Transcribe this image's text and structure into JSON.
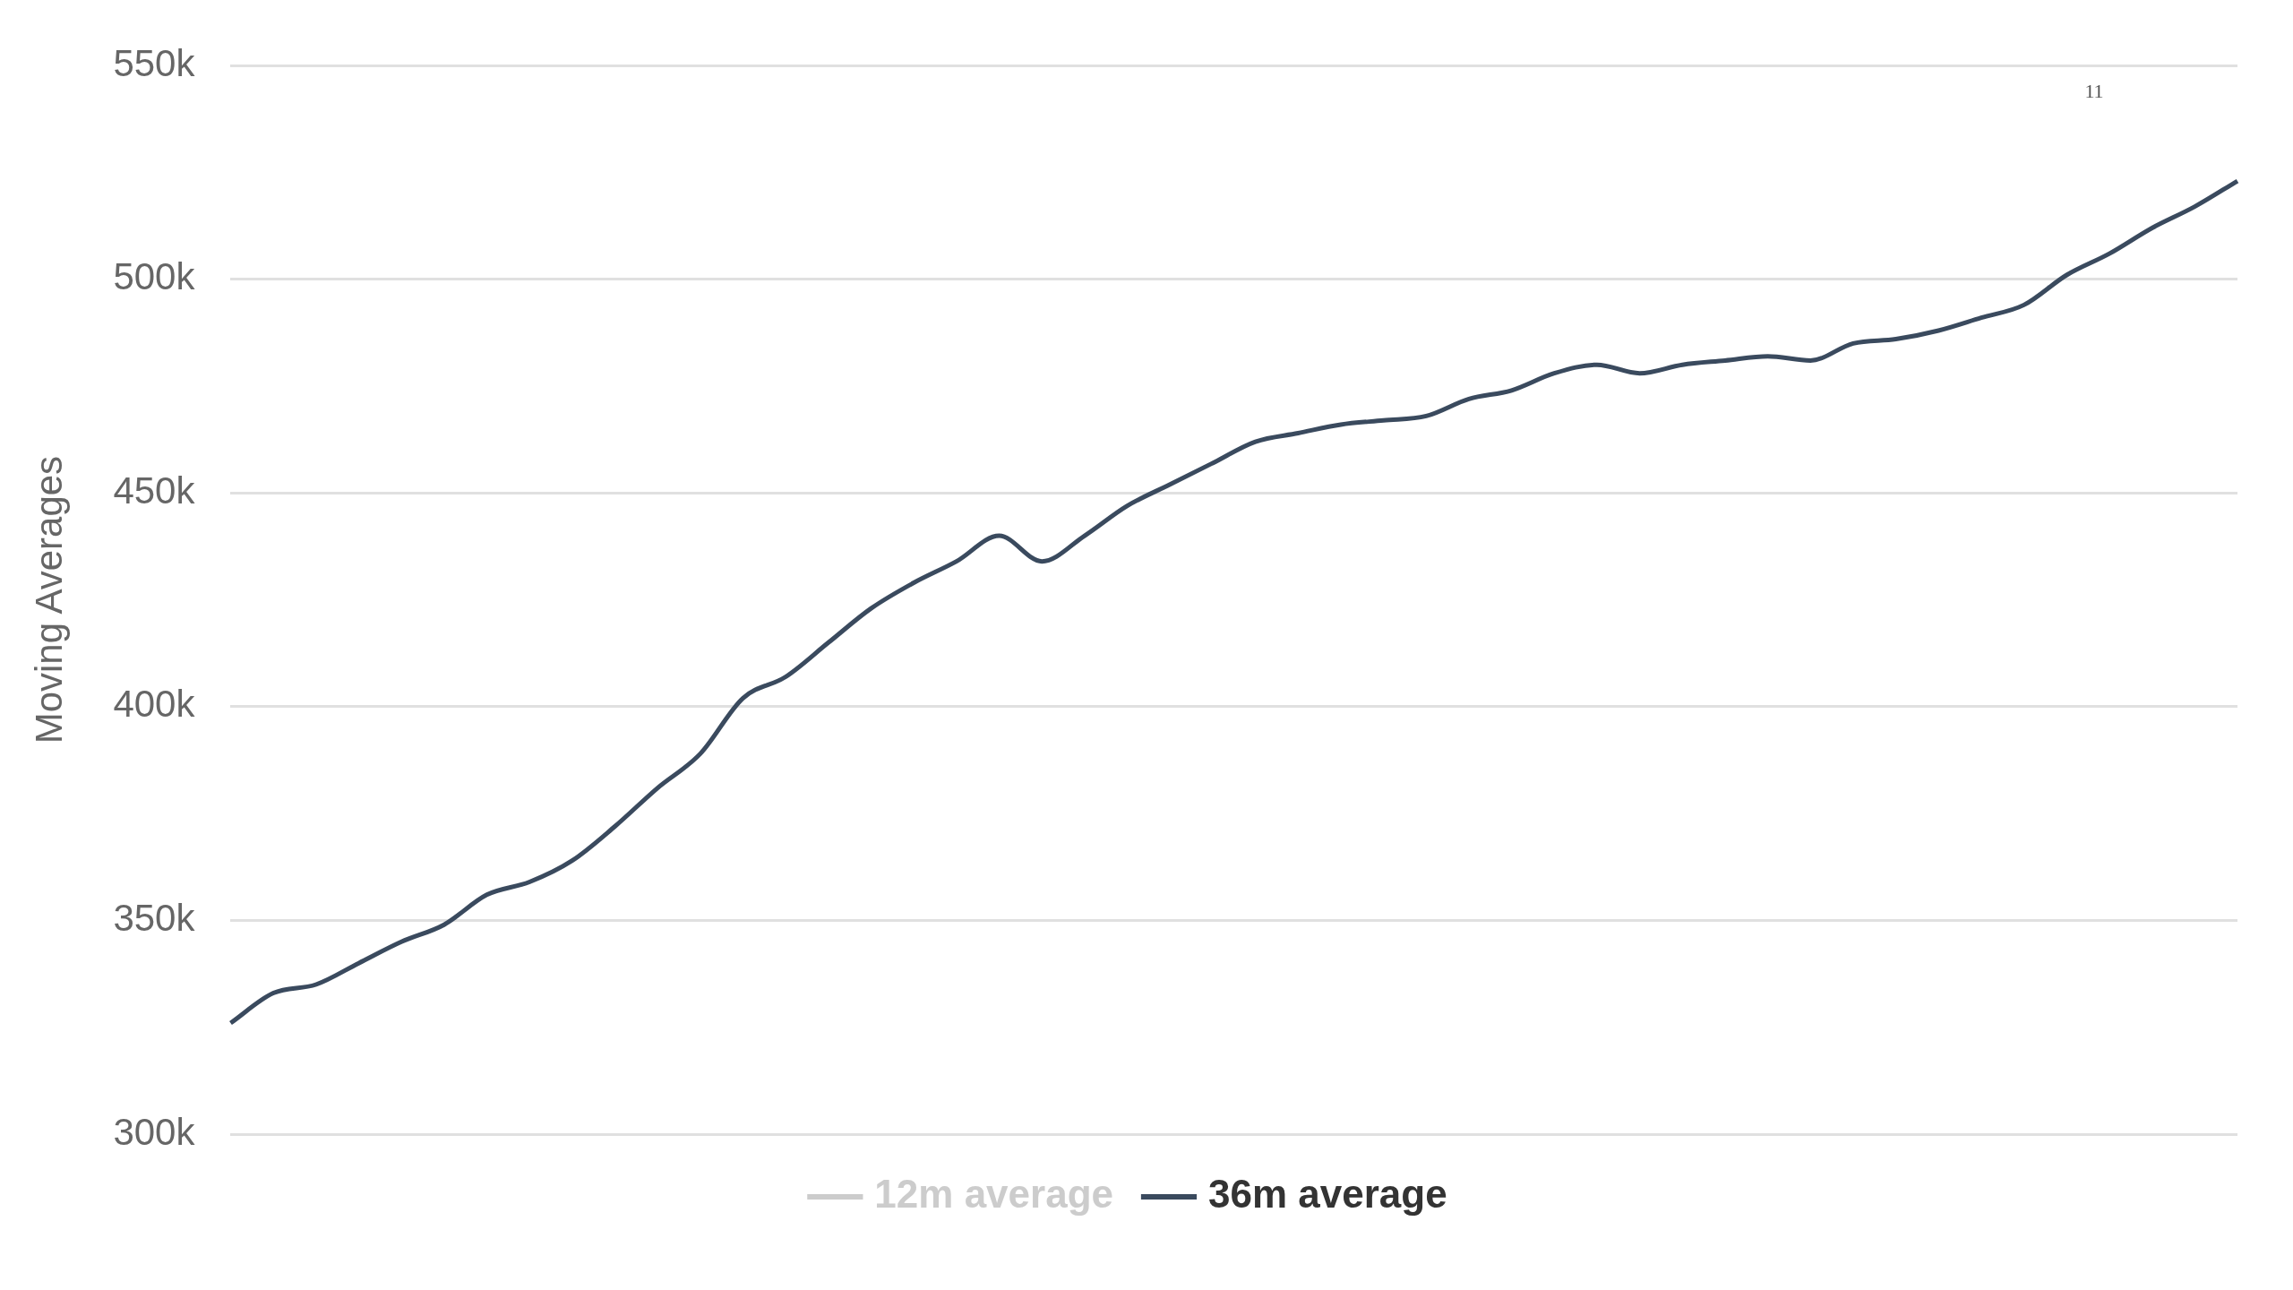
{
  "chart_data": {
    "type": "line",
    "ylabel": "Moving Averages",
    "categories": [
      null,
      null,
      null,
      null,
      null,
      null,
      null,
      null,
      null,
      null,
      null,
      null,
      null,
      null,
      null,
      null,
      null,
      null,
      null,
      null,
      null,
      null,
      null,
      null,
      null,
      null,
      null,
      null,
      null,
      null,
      null,
      null,
      null,
      null,
      null,
      null,
      null,
      null,
      null,
      null,
      null,
      null,
      null,
      null,
      null,
      null,
      null,
      null
    ],
    "series": [
      {
        "name": "12m average",
        "color": "#cccccc",
        "values": [
          null,
          null,
          null,
          null,
          null,
          null,
          null,
          null,
          null,
          null,
          null,
          null,
          null,
          null,
          null,
          null,
          null,
          null,
          null,
          null,
          null,
          null,
          null,
          null,
          null,
          null,
          null,
          null,
          null,
          null,
          null,
          null,
          null,
          null,
          null,
          null,
          null,
          null,
          null,
          null,
          null,
          null,
          null,
          null,
          null,
          null,
          null,
          null
        ]
      },
      {
        "name": "36m average",
        "color": "#3a4a5e",
        "values": [
          326000,
          333000,
          335000,
          340000,
          345000,
          349000,
          356000,
          359000,
          364000,
          372000,
          381000,
          389000,
          402000,
          407000,
          415000,
          423000,
          429000,
          434000,
          440000,
          434000,
          440000,
          447000,
          452000,
          457000,
          462000,
          464000,
          466000,
          467000,
          468000,
          472000,
          474000,
          478000,
          480000,
          478000,
          480000,
          481000,
          482000,
          481000,
          485000,
          486000,
          488000,
          491000,
          494000,
          501000,
          506000,
          512000,
          517000,
          523000
        ]
      }
    ],
    "ylim": [
      300000,
      550000
    ],
    "yticks": [
      {
        "value": 300000,
        "label": "300k"
      },
      {
        "value": 350000,
        "label": "350k"
      },
      {
        "value": 400000,
        "label": "400k"
      },
      {
        "value": 450000,
        "label": "450k"
      },
      {
        "value": 500000,
        "label": "500k"
      },
      {
        "value": 550000,
        "label": "550k"
      }
    ],
    "grid": "y",
    "legend": "bottom",
    "marker": "none",
    "line_style": "solid",
    "annotations": [
      "11"
    ]
  }
}
